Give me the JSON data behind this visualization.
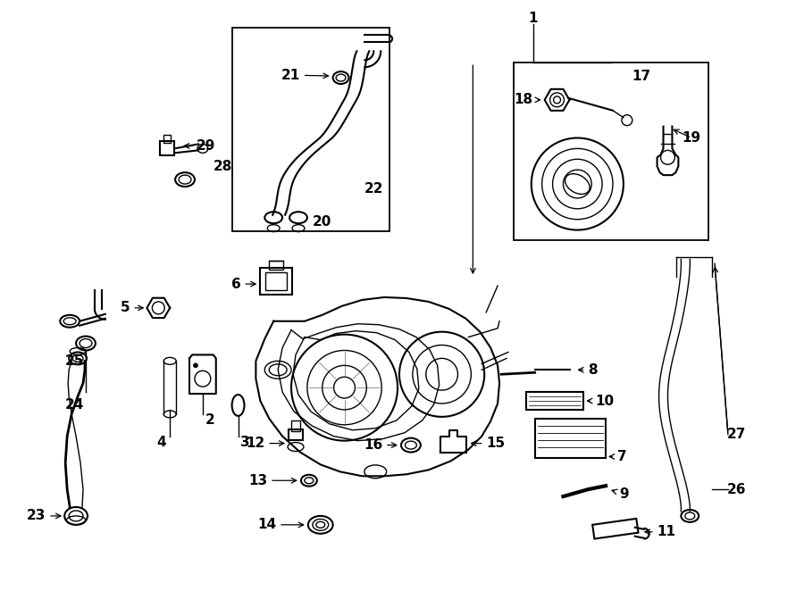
{
  "bg_color": "#ffffff",
  "line_color": "#000000",
  "fig_width": 9.0,
  "fig_height": 6.62
}
